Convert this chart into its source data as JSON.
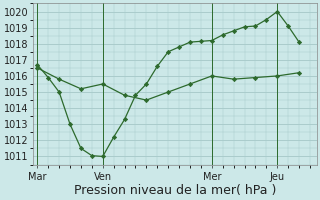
{
  "background_color": "#cce8e8",
  "grid_color": "#aacccc",
  "line_color": "#2d6a2d",
  "marker_color": "#2d6a2d",
  "xlabel": "Pression niveau de la mer( hPa )",
  "xlabel_fontsize": 9,
  "ylim": [
    1010.5,
    1020.5
  ],
  "yticks": [
    1011,
    1012,
    1013,
    1014,
    1015,
    1016,
    1017,
    1018,
    1019,
    1020
  ],
  "day_labels": [
    "Mar",
    "Ven",
    "Mer",
    "Jeu"
  ],
  "day_positions": [
    0,
    3,
    8,
    11
  ],
  "xlim": [
    -0.2,
    12.8
  ],
  "line1_x": [
    0,
    0.5,
    1,
    1.5,
    2,
    2.5,
    3,
    3.5,
    4,
    4.5,
    5,
    5.5,
    6,
    6.5,
    7,
    7.5,
    8,
    8.5,
    9,
    9.5,
    10,
    10.5,
    11,
    11.5,
    12
  ],
  "line1_y": [
    1016.7,
    1015.9,
    1015.0,
    1013.0,
    1011.5,
    1011.05,
    1011.0,
    1012.2,
    1013.3,
    1014.8,
    1015.5,
    1016.6,
    1017.5,
    1017.8,
    1018.1,
    1018.15,
    1018.2,
    1018.55,
    1018.8,
    1019.05,
    1019.1,
    1019.5,
    1020.0,
    1019.1,
    1018.1
  ],
  "line2_x": [
    0,
    1,
    2,
    3,
    4,
    5,
    6,
    7,
    8,
    9,
    10,
    11,
    12
  ],
  "line2_y": [
    1016.5,
    1015.8,
    1015.2,
    1015.5,
    1014.8,
    1014.5,
    1015.0,
    1015.5,
    1016.0,
    1015.8,
    1015.9,
    1016.0,
    1016.2
  ],
  "figsize": [
    3.2,
    2.0
  ],
  "dpi": 100
}
